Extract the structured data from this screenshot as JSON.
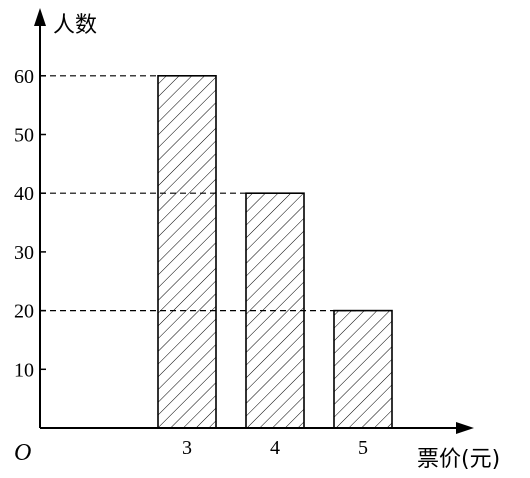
{
  "chart_data": {
    "type": "bar",
    "categories": [
      "3",
      "4",
      "5"
    ],
    "values": [
      60,
      40,
      20
    ],
    "yticks": [
      10,
      20,
      30,
      40,
      50,
      60
    ],
    "ylim": [
      0,
      60
    ],
    "xlabel": "票价(元)",
    "ylabel": "人数",
    "origin_label": "O",
    "dashed_reference_values": [
      60,
      40,
      20
    ],
    "bar_fill": "hatched",
    "grid": false,
    "legend": "none",
    "title": ""
  },
  "colors": {
    "ink": "#000000",
    "background": "#ffffff"
  }
}
